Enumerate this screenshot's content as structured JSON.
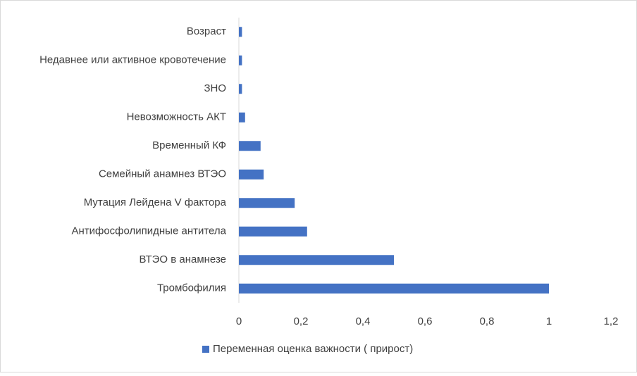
{
  "chart_data": {
    "type": "bar",
    "orientation": "horizontal",
    "categories": [
      "Возраст",
      "Недавнее или активное кровотечение",
      "ЗНО",
      "Невозможность АКТ",
      "Временный КФ",
      "Семейный анамнез ВТЭО",
      "Мутация Лейдена V фактора",
      "Антифосфолипидные антитела",
      "ВТЭО в анамнезе",
      "Тромбофилия"
    ],
    "series": [
      {
        "name": "Переменная оценка важности ( прирост)",
        "color": "#4472c4",
        "values": [
          0.01,
          0.01,
          0.01,
          0.02,
          0.07,
          0.08,
          0.18,
          0.22,
          0.5,
          1
        ]
      }
    ],
    "xlim": [
      0,
      1.2
    ],
    "xticks": [
      0,
      {
        "value": 0.2,
        "label": "0,2"
      },
      {
        "value": 0.4,
        "label": "0,4"
      },
      {
        "value": 0.6,
        "label": "0,6"
      },
      {
        "value": 0.8,
        "label": "0,8"
      },
      1,
      {
        "value": 1.2,
        "label": "1,2"
      }
    ],
    "grid": false,
    "legend": "bottom"
  }
}
